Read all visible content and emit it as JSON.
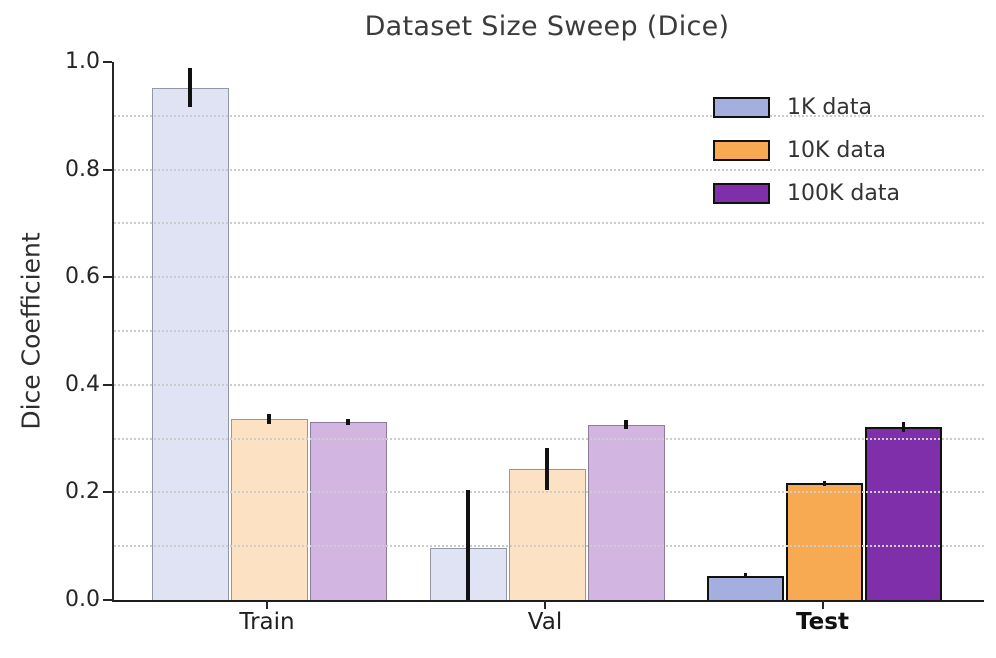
{
  "figure": {
    "title": "Dataset Size Sweep (Dice)",
    "background": "#ffffff"
  },
  "y_axis": {
    "label": "Dice Coefficient",
    "ticks": [
      {
        "label": "0.0",
        "value": 0.0
      },
      {
        "label": "0.2",
        "value": 0.2
      },
      {
        "label": "0.4",
        "value": 0.4
      },
      {
        "label": "0.6",
        "value": 0.6
      },
      {
        "label": "0.8",
        "value": 0.8
      },
      {
        "label": "1.0",
        "value": 1.0
      }
    ]
  },
  "x_axis": {
    "categories": [
      "Train",
      "Val",
      "Test"
    ]
  },
  "legend": {
    "position": "upper right"
  },
  "chart_data": {
    "type": "bar",
    "title": "Dataset Size Sweep (Dice)",
    "ylabel": "Dice Coefficient",
    "ylim": [
      0,
      1.0
    ],
    "categories": [
      "Train",
      "Val",
      "Test"
    ],
    "series": [
      {
        "name": "1K data",
        "color": "#A4AEDF",
        "values": [
          0.952,
          0.097,
          0.045
        ],
        "errors": [
          0.036,
          0.107,
          0.005
        ]
      },
      {
        "name": "10K data",
        "color": "#F7AA52",
        "values": [
          0.336,
          0.243,
          0.217
        ],
        "errors": [
          0.009,
          0.039,
          0.005
        ]
      },
      {
        "name": "100K data",
        "color": "#7E2FA9",
        "values": [
          0.331,
          0.326,
          0.322
        ],
        "errors": [
          0.005,
          0.008,
          0.009
        ]
      }
    ],
    "category_alpha": [
      0.35,
      0.35,
      1.0
    ],
    "emphasis_category": "Test",
    "grid": {
      "axis": "y",
      "step": 0.1,
      "style": "dotted"
    },
    "legend_position": "upper right"
  }
}
